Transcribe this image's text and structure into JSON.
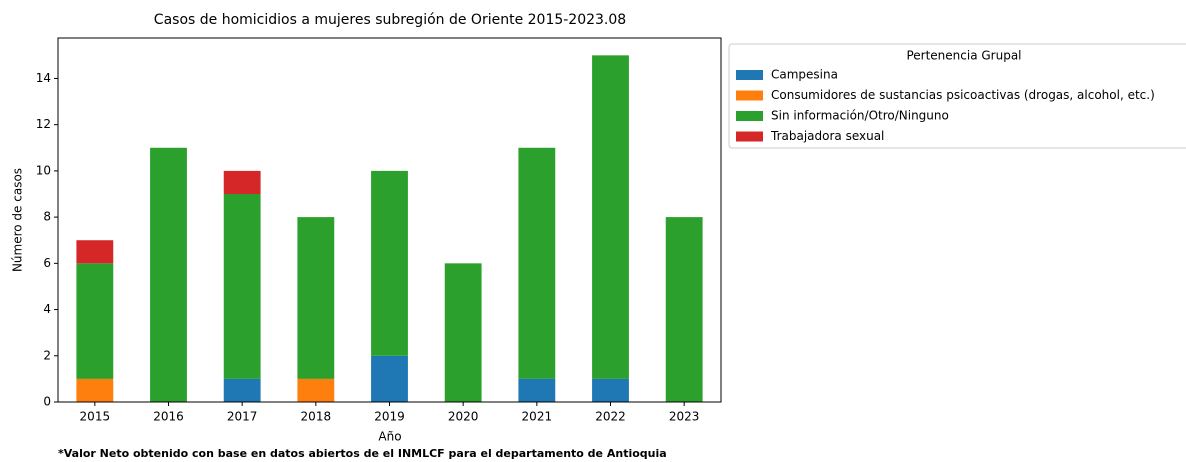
{
  "chart_data": {
    "type": "stacked_bar",
    "title": "Casos de homicidios a mujeres subregión de Oriente 2015-2023.08",
    "x_label": "Año",
    "y_label": "Número de casos",
    "footnote": "*Valor Neto obtenido con base en datos abiertos de el INMLCF para el departamento de Antioquia",
    "legend_title": "Pertenencia Grupal",
    "legend_position": "outside-upper-right",
    "categories": [
      "2015",
      "2016",
      "2017",
      "2018",
      "2019",
      "2020",
      "2021",
      "2022",
      "2023"
    ],
    "series": [
      {
        "name": "Campesina",
        "color": "#1f77b4",
        "values": [
          0,
          0,
          1,
          0,
          2,
          0,
          1,
          1,
          0
        ]
      },
      {
        "name": "Consumidores de sustancias psicoactivas (drogas, alcohol, etc.)",
        "color": "#ff7f0e",
        "values": [
          1,
          0,
          0,
          1,
          0,
          0,
          0,
          0,
          0
        ]
      },
      {
        "name": "Sin información/Otro/Ninguno",
        "color": "#2ca02c",
        "values": [
          5,
          11,
          8,
          7,
          8,
          6,
          10,
          14,
          8
        ]
      },
      {
        "name": "Trabajadora sexual",
        "color": "#d62728",
        "values": [
          1,
          0,
          1,
          0,
          0,
          0,
          0,
          0,
          0
        ]
      }
    ],
    "ylim": [
      0,
      15.75
    ],
    "yticks": [
      0,
      2,
      4,
      6,
      8,
      10,
      12,
      14
    ],
    "grid": false
  }
}
